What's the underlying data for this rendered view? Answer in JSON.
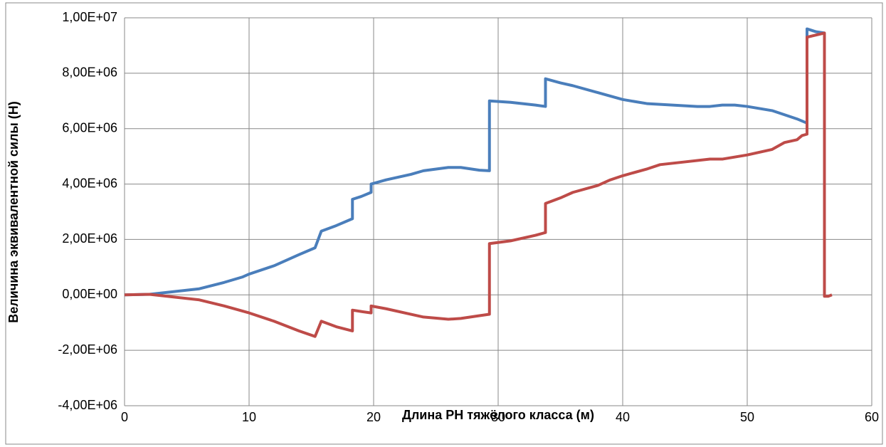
{
  "chart_data": {
    "type": "line",
    "xlabel": "Длина РН тяжёлого класса (м)",
    "ylabel": "Величина эквивалентной силы (Н)",
    "xlim": [
      0,
      60
    ],
    "xticks": [
      0,
      10,
      20,
      30,
      40,
      50,
      60
    ],
    "ylim": [
      -4000000,
      10000000
    ],
    "yticks": [
      {
        "value": -4000000,
        "label": "-4,00E+06"
      },
      {
        "value": -2000000,
        "label": "-2,00E+06"
      },
      {
        "value": 0,
        "label": "0,00E+00"
      },
      {
        "value": 2000000,
        "label": "2,00E+06"
      },
      {
        "value": 4000000,
        "label": "4,00E+06"
      },
      {
        "value": 6000000,
        "label": "6,00E+06"
      },
      {
        "value": 8000000,
        "label": "8,00E+06"
      },
      {
        "value": 10000000,
        "label": "1,00E+07"
      }
    ],
    "grid": true,
    "series": [
      {
        "color": "#4a7ebb",
        "x": [
          0,
          2,
          4,
          6,
          8,
          9.5,
          10,
          12,
          14,
          15.3,
          15.8,
          17,
          18.3,
          18.3,
          19,
          19.8,
          19.8,
          21,
          23,
          24,
          26,
          27,
          28.5,
          29.3,
          29.3,
          31,
          33,
          33.8,
          33.8,
          35,
          36,
          38,
          40,
          42,
          44,
          46,
          47,
          48,
          49,
          50,
          52,
          53,
          54,
          54.8,
          54.8,
          55.5,
          56.2
        ],
        "values": [
          0,
          20000,
          120000,
          220000,
          450000,
          650000,
          750000,
          1050000,
          1450000,
          1700000,
          2300000,
          2500000,
          2750000,
          3450000,
          3550000,
          3700000,
          4000000,
          4150000,
          4350000,
          4480000,
          4600000,
          4600000,
          4500000,
          4480000,
          7000000,
          6950000,
          6850000,
          6800000,
          7800000,
          7650000,
          7550000,
          7300000,
          7050000,
          6900000,
          6850000,
          6800000,
          6800000,
          6850000,
          6850000,
          6800000,
          6650000,
          6500000,
          6350000,
          6200000,
          9600000,
          9500000,
          9450000
        ]
      },
      {
        "color": "#be4b48",
        "x": [
          0,
          2,
          4,
          6,
          8,
          10,
          12,
          14,
          15.3,
          15.8,
          17,
          18.3,
          18.3,
          19,
          19.8,
          19.8,
          21,
          23,
          24,
          26,
          27,
          28.5,
          29.3,
          29.3,
          31,
          33,
          33.8,
          33.8,
          35,
          36,
          38,
          39,
          40,
          42,
          43,
          45,
          47,
          48,
          50,
          52,
          53,
          54,
          54.4,
          54.8,
          54.8,
          56.2,
          56.2,
          56.5,
          56.8
        ],
        "values": [
          0,
          20000,
          -80000,
          -180000,
          -400000,
          -650000,
          -950000,
          -1300000,
          -1500000,
          -950000,
          -1150000,
          -1300000,
          -550000,
          -600000,
          -650000,
          -400000,
          -500000,
          -700000,
          -800000,
          -880000,
          -850000,
          -750000,
          -700000,
          1850000,
          1950000,
          2150000,
          2250000,
          3300000,
          3500000,
          3700000,
          3950000,
          4150000,
          4300000,
          4550000,
          4700000,
          4800000,
          4900000,
          4900000,
          5050000,
          5250000,
          5500000,
          5600000,
          5750000,
          5800000,
          9300000,
          9450000,
          -50000,
          -50000,
          0
        ]
      }
    ]
  }
}
